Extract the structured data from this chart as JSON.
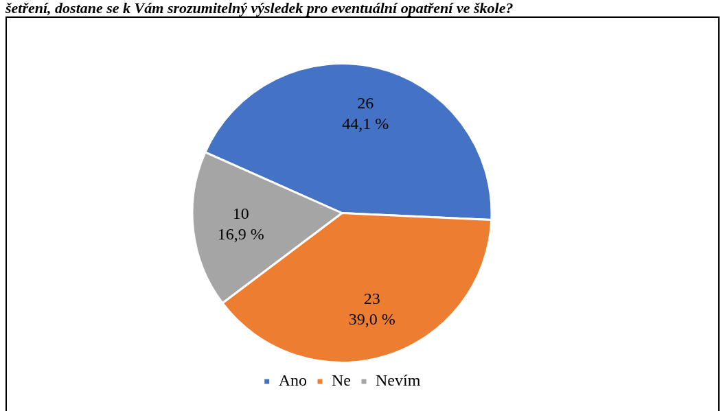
{
  "chart_data": {
    "type": "pie",
    "title": "šetření, dostane se k Vám srozumitelný výsledek pro eventuální opatření ve škole?",
    "categories": [
      "Ano",
      "Ne",
      "Nevím"
    ],
    "values": [
      26,
      23,
      10
    ],
    "colors": [
      "#4472c4",
      "#ed7d31",
      "#a5a5a5"
    ],
    "value_labels": [
      "26\n44,1 %",
      "23\n39,0 %",
      "10\n16,9 %"
    ],
    "legend": "bottom"
  }
}
